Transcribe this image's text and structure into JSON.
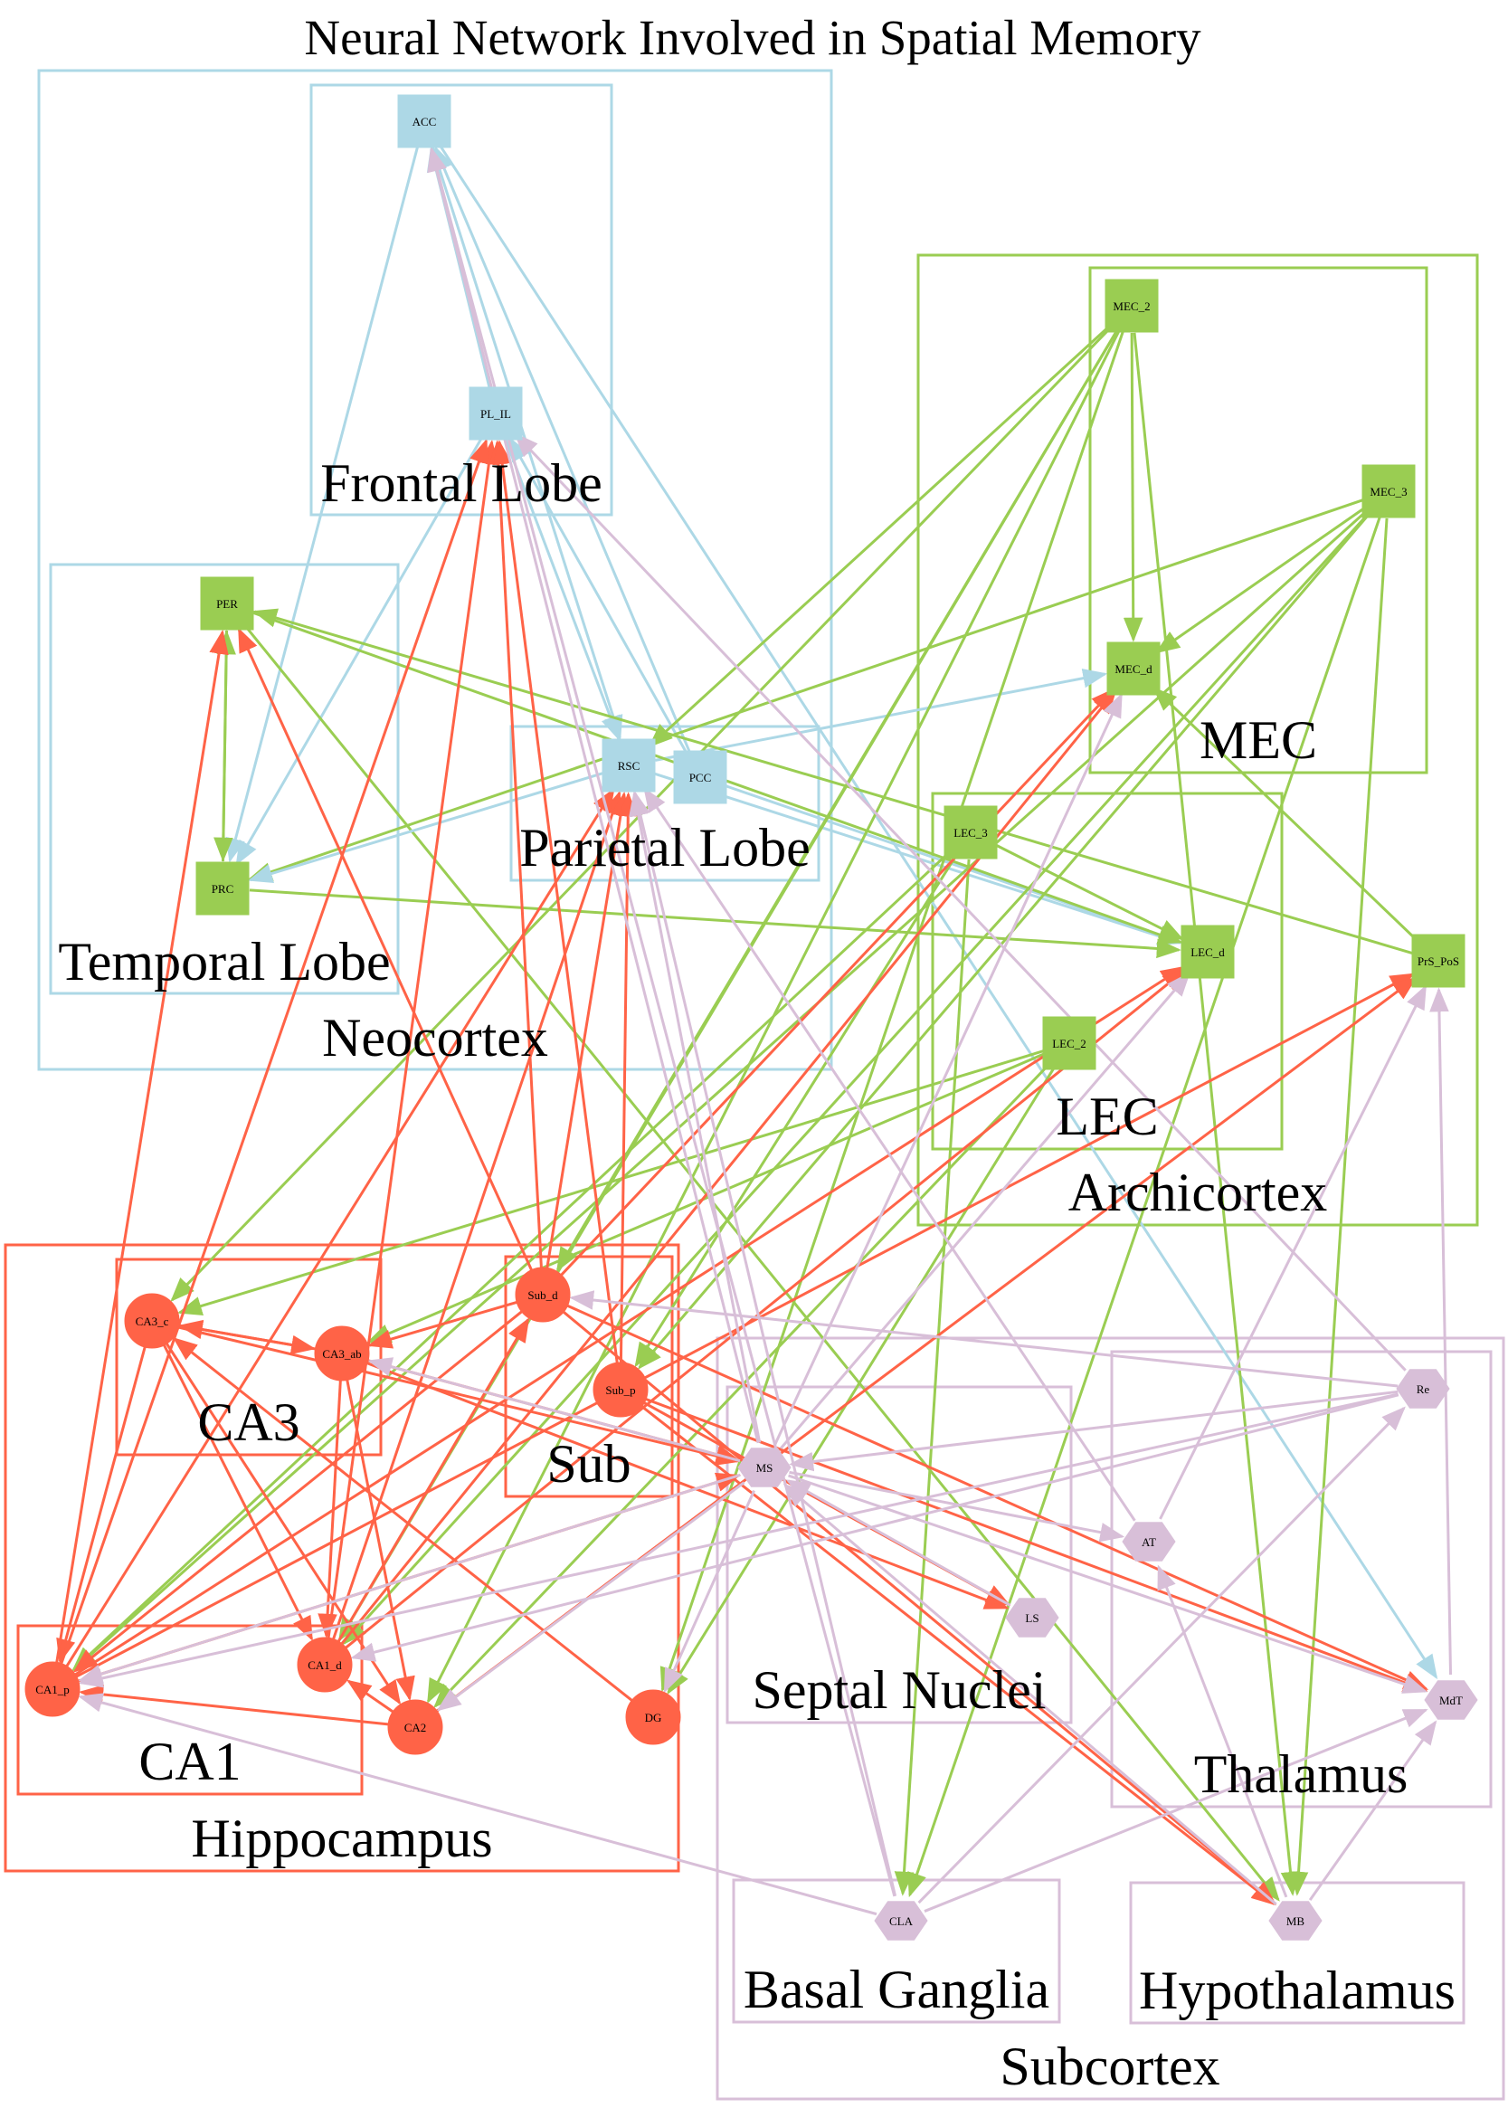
{
  "title": "Neural Network Involved in Spatial Memory",
  "colors": {
    "neocortex": "#add8e6",
    "archicortex": "#9acd52",
    "hippocampus": "#ff6347",
    "subcortex": "#d8bfd8",
    "background": "#ffffff"
  },
  "clusters": {
    "neocortex": "Neocortex",
    "frontal": "Frontal Lobe",
    "temporal": "Temporal Lobe",
    "parietal": "Parietal Lobe",
    "archicortex": "Archicortex",
    "mec": "MEC",
    "lec": "LEC",
    "hippocampus": "Hippocampus",
    "ca3": "CA3",
    "sub": "Sub",
    "ca1": "CA1",
    "subcortex": "Subcortex",
    "septal": "Septal Nuclei",
    "thalamus": "Thalamus",
    "basal": "Basal Ganglia",
    "hypothalamus": "Hypothalamus"
  },
  "nodes": [
    {
      "id": "ACC",
      "label": "ACC",
      "group": "neocortex",
      "shape": "square"
    },
    {
      "id": "PL_IL",
      "label": "PL_IL",
      "group": "neocortex",
      "shape": "square"
    },
    {
      "id": "PER",
      "label": "PER",
      "group": "archicortex",
      "shape": "square"
    },
    {
      "id": "PRC",
      "label": "PRC",
      "group": "archicortex",
      "shape": "square"
    },
    {
      "id": "RSC",
      "label": "RSC",
      "group": "neocortex",
      "shape": "square"
    },
    {
      "id": "PCC",
      "label": "PCC",
      "group": "neocortex",
      "shape": "square"
    },
    {
      "id": "MEC_2",
      "label": "MEC_2",
      "group": "archicortex",
      "shape": "square"
    },
    {
      "id": "MEC_3",
      "label": "MEC_3",
      "group": "archicortex",
      "shape": "square"
    },
    {
      "id": "MEC_d",
      "label": "MEC_d",
      "group": "archicortex",
      "shape": "square"
    },
    {
      "id": "LEC_3",
      "label": "LEC_3",
      "group": "archicortex",
      "shape": "square"
    },
    {
      "id": "LEC_d",
      "label": "LEC_d",
      "group": "archicortex",
      "shape": "square"
    },
    {
      "id": "LEC_2",
      "label": "LEC_2",
      "group": "archicortex",
      "shape": "square"
    },
    {
      "id": "PrS_PoS",
      "label": "PrS_PoS",
      "group": "archicortex",
      "shape": "square"
    },
    {
      "id": "CA3_c",
      "label": "CA3_c",
      "group": "hippocampus",
      "shape": "circle"
    },
    {
      "id": "CA3_ab",
      "label": "CA3_ab",
      "group": "hippocampus",
      "shape": "circle"
    },
    {
      "id": "Sub_d",
      "label": "Sub_d",
      "group": "hippocampus",
      "shape": "circle"
    },
    {
      "id": "Sub_p",
      "label": "Sub_p",
      "group": "hippocampus",
      "shape": "circle"
    },
    {
      "id": "CA1_p",
      "label": "CA1_p",
      "group": "hippocampus",
      "shape": "circle"
    },
    {
      "id": "CA1_d",
      "label": "CA1_d",
      "group": "hippocampus",
      "shape": "circle"
    },
    {
      "id": "CA2",
      "label": "CA2",
      "group": "hippocampus",
      "shape": "circle"
    },
    {
      "id": "DG",
      "label": "DG",
      "group": "hippocampus",
      "shape": "circle"
    },
    {
      "id": "MS",
      "label": "MS",
      "group": "subcortex",
      "shape": "hexagon"
    },
    {
      "id": "LS",
      "label": "LS",
      "group": "subcortex",
      "shape": "hexagon"
    },
    {
      "id": "Re",
      "label": "Re",
      "group": "subcortex",
      "shape": "hexagon"
    },
    {
      "id": "AT",
      "label": "AT",
      "group": "subcortex",
      "shape": "hexagon"
    },
    {
      "id": "MdT",
      "label": "MdT",
      "group": "subcortex",
      "shape": "hexagon"
    },
    {
      "id": "CLA",
      "label": "CLA",
      "group": "subcortex",
      "shape": "hexagon"
    },
    {
      "id": "MB",
      "label": "MB",
      "group": "subcortex",
      "shape": "hexagon"
    }
  ],
  "edges": [
    [
      "PL_IL",
      "ACC"
    ],
    [
      "ACC",
      "PRC"
    ],
    [
      "PL_IL",
      "PRC"
    ],
    [
      "ACC",
      "RSC"
    ],
    [
      "PL_IL",
      "RSC"
    ],
    [
      "PCC",
      "ACC"
    ],
    [
      "PCC",
      "PL_IL"
    ],
    [
      "RSC",
      "MEC_d"
    ],
    [
      "RSC",
      "LEC_d"
    ],
    [
      "PCC",
      "LEC_d"
    ],
    [
      "ACC",
      "MdT"
    ],
    [
      "PER",
      "PRC"
    ],
    [
      "PRC",
      "PER"
    ],
    [
      "PER",
      "LEC_d"
    ],
    [
      "PER",
      "MB"
    ],
    [
      "PRC",
      "LEC_d"
    ],
    [
      "MEC_3",
      "PRC"
    ],
    [
      "RSC",
      "PRC"
    ],
    [
      "MEC_2",
      "MEC_d"
    ],
    [
      "MEC_3",
      "MEC_d"
    ],
    [
      "MEC_2",
      "CA3_c"
    ],
    [
      "MEC_2",
      "Sub_d"
    ],
    [
      "MEC_2",
      "DG"
    ],
    [
      "MEC_2",
      "CA2"
    ],
    [
      "MEC_2",
      "CA1_d"
    ],
    [
      "MEC_2",
      "MB"
    ],
    [
      "MEC_3",
      "CA1_p"
    ],
    [
      "MEC_3",
      "Sub_p"
    ],
    [
      "MEC_3",
      "CLA"
    ],
    [
      "MEC_3",
      "MB"
    ],
    [
      "MEC_3",
      "CA1_d"
    ],
    [
      "LEC_3",
      "CA1_p"
    ],
    [
      "LEC_3",
      "CLA"
    ],
    [
      "LEC_3",
      "Sub_p"
    ],
    [
      "LEC_3",
      "LEC_d"
    ],
    [
      "LEC_2",
      "CA3_c"
    ],
    [
      "LEC_2",
      "CA3_ab"
    ],
    [
      "LEC_2",
      "DG"
    ],
    [
      "LEC_2",
      "CA2"
    ],
    [
      "PrS_PoS",
      "PER"
    ],
    [
      "PrS_PoS",
      "MEC_d"
    ],
    [
      "MEC_2",
      "RSC"
    ],
    [
      "CA3_c",
      "CA3_ab"
    ],
    [
      "CA3_ab",
      "CA3_c"
    ],
    [
      "CA3_c",
      "CA1_p"
    ],
    [
      "CA3_c",
      "CA1_d"
    ],
    [
      "CA3_c",
      "CA2"
    ],
    [
      "CA3_ab",
      "CA1_d"
    ],
    [
      "CA3_ab",
      "CA2"
    ],
    [
      "CA3_c",
      "MS"
    ],
    [
      "CA3_ab",
      "LS"
    ],
    [
      "Sub_d",
      "CA3_ab"
    ],
    [
      "DG",
      "CA3_c"
    ],
    [
      "CA2",
      "CA1_p"
    ],
    [
      "CA2",
      "CA1_d"
    ],
    [
      "CA1_d",
      "PL_IL"
    ],
    [
      "CA1_p",
      "PL_IL"
    ],
    [
      "CA1_d",
      "RSC"
    ],
    [
      "CA1_p",
      "PER"
    ],
    [
      "CA1_p",
      "RSC"
    ],
    [
      "CA1_d",
      "MEC_d"
    ],
    [
      "Sub_d",
      "PL_IL"
    ],
    [
      "Sub_d",
      "RSC"
    ],
    [
      "Sub_d",
      "PER"
    ],
    [
      "Sub_p",
      "RSC"
    ],
    [
      "Sub_p",
      "PL_IL"
    ],
    [
      "Sub_d",
      "MEC_d"
    ],
    [
      "Sub_d",
      "MdT"
    ],
    [
      "Sub_d",
      "MB"
    ],
    [
      "Sub_p",
      "MB"
    ],
    [
      "Sub_p",
      "MdT"
    ],
    [
      "Sub_p",
      "LS"
    ],
    [
      "CA1_p",
      "LEC_d"
    ],
    [
      "CA1_p",
      "PrS_PoS"
    ],
    [
      "CA1_d",
      "Sub_d"
    ],
    [
      "CA1_p",
      "MS"
    ],
    [
      "Sub_d",
      "CA1_p"
    ],
    [
      "CA1_d",
      "LEC_d"
    ],
    [
      "CA2",
      "PrS_PoS"
    ],
    [
      "MS",
      "ACC"
    ],
    [
      "MS",
      "RSC"
    ],
    [
      "MS",
      "CA1_p"
    ],
    [
      "MS",
      "CA2"
    ],
    [
      "MS",
      "DG"
    ],
    [
      "MS",
      "MEC_d"
    ],
    [
      "MS",
      "LEC_d"
    ],
    [
      "MS",
      "AT"
    ],
    [
      "MS",
      "MdT"
    ],
    [
      "LS",
      "MS"
    ],
    [
      "Re",
      "CA1_p"
    ],
    [
      "Re",
      "Sub_d"
    ],
    [
      "Re",
      "CA1_d"
    ],
    [
      "Re",
      "PL_IL"
    ],
    [
      "Re",
      "MS"
    ],
    [
      "AT",
      "PrS_PoS"
    ],
    [
      "AT",
      "RSC"
    ],
    [
      "MdT",
      "PrS_PoS"
    ],
    [
      "CLA",
      "ACC"
    ],
    [
      "CLA",
      "RSC"
    ],
    [
      "CLA",
      "CA1_p"
    ],
    [
      "CLA",
      "MdT"
    ],
    [
      "CLA",
      "Re"
    ],
    [
      "MB",
      "AT"
    ],
    [
      "MB",
      "MdT"
    ],
    [
      "MB",
      "MS"
    ],
    [
      "CA3_ab",
      "MS"
    ],
    [
      "MS",
      "CA3_ab"
    ]
  ]
}
